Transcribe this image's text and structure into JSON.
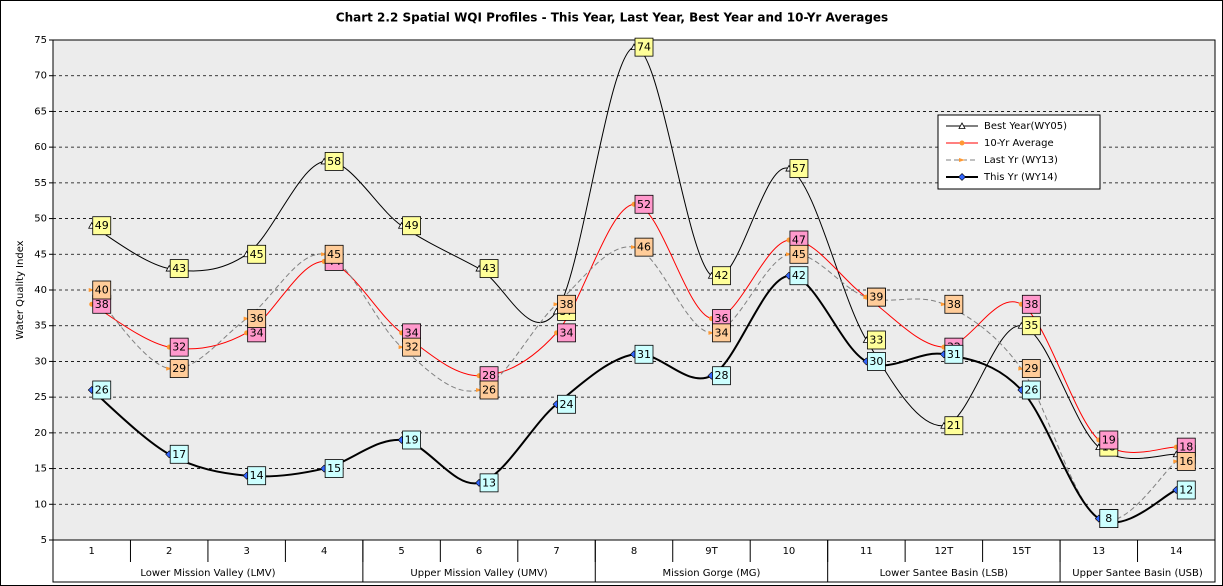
{
  "chart_data": {
    "type": "line",
    "title": "Chart 2.2 Spatial WQI Profiles - This Year, Last Year, Best Year and 10-Yr Averages",
    "y_label": "Water Quality Index",
    "categories": [
      "1",
      "2",
      "3",
      "4",
      "5",
      "6",
      "7",
      "8",
      "9T",
      "10",
      "11",
      "12T",
      "15T",
      "13",
      "14"
    ],
    "groups": [
      {
        "label": "Lower Mission Valley (LMV)",
        "categories": [
          "1",
          "2",
          "3",
          "4"
        ]
      },
      {
        "label": "Upper Mission Valley (UMV)",
        "categories": [
          "5",
          "6",
          "7"
        ]
      },
      {
        "label": "Mission Gorge (MG)",
        "categories": [
          "8",
          "9T",
          "10"
        ]
      },
      {
        "label": "Lower Santee Basin (LSB)",
        "categories": [
          "11",
          "12T",
          "15T"
        ]
      },
      {
        "label": "Upper Santee Basin (USB)",
        "categories": [
          "13",
          "14"
        ]
      }
    ],
    "series": [
      {
        "name": "Best Year(WY05)",
        "color": "#000000",
        "marker": "triangle",
        "marker_color": "#ffffff",
        "label_color": "#ffff99",
        "width": 1,
        "dash": false,
        "values": [
          49,
          43,
          45,
          58,
          49,
          43,
          37,
          74,
          42,
          57,
          33,
          21,
          35,
          18,
          17
        ]
      },
      {
        "name": "10-Yr Average",
        "color": "#ff0000",
        "marker": "circle",
        "marker_color": "#ff9933",
        "label_color": "#ff99cc",
        "width": 1,
        "dash": false,
        "values": [
          38,
          32,
          34,
          44,
          34,
          28,
          34,
          52,
          36,
          47,
          39,
          32,
          38,
          19,
          18
        ]
      },
      {
        "name": "Last Yr (WY13)",
        "color": "#808080",
        "marker": "arrow",
        "marker_color": "#ff9933",
        "label_color": "#ffcc99",
        "width": 1,
        "dash": true,
        "values": [
          40,
          29,
          36,
          45,
          32,
          26,
          38,
          46,
          34,
          45,
          39,
          38,
          29,
          8,
          16
        ]
      },
      {
        "name": "This Yr (WY14)",
        "color": "#000000",
        "marker": "diamond",
        "marker_color": "#3366ff",
        "label_color": "#ccffff",
        "width": 2,
        "dash": false,
        "values": [
          26,
          17,
          14,
          15,
          19,
          13,
          24,
          31,
          28,
          42,
          30,
          31,
          26,
          8,
          12
        ]
      }
    ],
    "ylim": [
      5,
      75
    ],
    "yticks": [
      5,
      10,
      15,
      20,
      25,
      30,
      35,
      40,
      45,
      50,
      55,
      60,
      65,
      70,
      75
    ],
    "grid": true,
    "legend": "upper right"
  }
}
